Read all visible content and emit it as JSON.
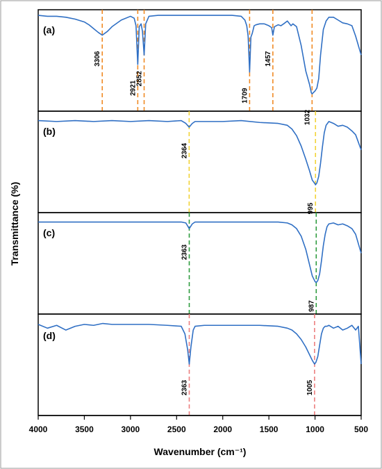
{
  "chart_data": {
    "type": "line",
    "xlabel": "Wavenumber (cm⁻¹)",
    "ylabel": "Transmittance (%)",
    "xlim": [
      4000,
      500
    ],
    "x_ticks": [
      4000,
      3500,
      3000,
      2500,
      2000,
      1500,
      1000,
      500
    ],
    "x_tick_labels": [
      "4000",
      "3500",
      "3000",
      "2500",
      "2000",
      "1500",
      "1000",
      "500"
    ],
    "y_ticks_shown": false,
    "grid": false,
    "line_color": "#2f6fc4",
    "panels": [
      {
        "label": "(a)",
        "marker_color": "#f08a24",
        "peaks": [
          3306,
          2921,
          2852,
          1709,
          1457,
          1032
        ],
        "peak_labels": [
          "3306",
          "2921",
          "2852",
          "1709",
          "1457",
          "1032"
        ],
        "spectrum": {
          "x": [
            4000,
            3900,
            3800,
            3700,
            3600,
            3500,
            3450,
            3400,
            3350,
            3306,
            3250,
            3200,
            3100,
            3000,
            2960,
            2940,
            2921,
            2905,
            2885,
            2870,
            2852,
            2835,
            2800,
            2700,
            2500,
            2300,
            2100,
            1900,
            1800,
            1760,
            1740,
            1725,
            1709,
            1695,
            1680,
            1660,
            1640,
            1600,
            1550,
            1500,
            1470,
            1457,
            1440,
            1400,
            1370,
            1340,
            1300,
            1260,
            1240,
            1200,
            1150,
            1100,
            1060,
            1040,
            1032,
            1020,
            1000,
            980,
            960,
            940,
            910,
            880,
            850,
            800,
            750,
            700,
            650,
            600,
            560,
            530,
            500
          ],
          "y": [
            97,
            96,
            96,
            95,
            93,
            90,
            87,
            83,
            79,
            76,
            80,
            85,
            92,
            96,
            94,
            86,
            45,
            85,
            88,
            80,
            55,
            88,
            96,
            97,
            97,
            97,
            97,
            97,
            96,
            92,
            86,
            75,
            37,
            74,
            78,
            86,
            87,
            88,
            88,
            86,
            84,
            76,
            85,
            87,
            86,
            88,
            91,
            86,
            88,
            85,
            65,
            38,
            24,
            15,
            14,
            15,
            17,
            20,
            30,
            55,
            82,
            91,
            95,
            95,
            92,
            89,
            88,
            86,
            75,
            65,
            55
          ]
        }
      },
      {
        "label": "(b)",
        "marker_color": "#f2d336",
        "peaks": [
          2364,
          995
        ],
        "peak_labels": [
          "2364",
          "995"
        ],
        "spectrum": {
          "x": [
            4000,
            3800,
            3600,
            3400,
            3200,
            3000,
            2800,
            2600,
            2450,
            2400,
            2364,
            2330,
            2300,
            2200,
            2000,
            1800,
            1600,
            1400,
            1300,
            1250,
            1200,
            1150,
            1100,
            1060,
            1030,
            1000,
            995,
            980,
            960,
            940,
            920,
            900,
            880,
            850,
            800,
            750,
            700,
            650,
            600,
            560,
            530,
            500
          ],
          "y": [
            93,
            92,
            93,
            92,
            93,
            92,
            93,
            92,
            93,
            90,
            86,
            90,
            92,
            92,
            92,
            93,
            91,
            90,
            88,
            84,
            77,
            66,
            52,
            40,
            30,
            26,
            25,
            27,
            34,
            48,
            65,
            80,
            88,
            92,
            90,
            87,
            88,
            86,
            82,
            78,
            70,
            62
          ]
        }
      },
      {
        "label": "(c)",
        "marker_color": "#2e9b3e",
        "peaks": [
          2363,
          987
        ],
        "peak_labels": [
          "2363",
          "987"
        ],
        "spectrum": {
          "x": [
            4000,
            3800,
            3600,
            3400,
            3200,
            3000,
            2800,
            2600,
            2450,
            2400,
            2363,
            2330,
            2300,
            2200,
            2000,
            1800,
            1600,
            1400,
            1300,
            1250,
            1200,
            1150,
            1100,
            1060,
            1030,
            1000,
            987,
            970,
            950,
            930,
            910,
            890,
            870,
            850,
            800,
            750,
            700,
            650,
            600,
            560,
            530,
            500
          ],
          "y": [
            93,
            93,
            93,
            93,
            93,
            93,
            93,
            93,
            93,
            92,
            86,
            91,
            93,
            93,
            93,
            93,
            93,
            93,
            92,
            90,
            86,
            78,
            64,
            48,
            36,
            30,
            29,
            31,
            38,
            52,
            68,
            80,
            88,
            91,
            92,
            90,
            91,
            89,
            86,
            80,
            70,
            60
          ]
        }
      },
      {
        "label": "(d)",
        "marker_color": "#ec7e7e",
        "peaks": [
          2363,
          1005
        ],
        "peak_labels": [
          "2363",
          "1005"
        ],
        "spectrum": {
          "x": [
            4000,
            3900,
            3800,
            3700,
            3600,
            3500,
            3400,
            3300,
            3200,
            3000,
            2800,
            2600,
            2450,
            2410,
            2380,
            2363,
            2345,
            2320,
            2300,
            2200,
            2000,
            1800,
            1600,
            1400,
            1300,
            1250,
            1200,
            1150,
            1100,
            1060,
            1030,
            1005,
            990,
            970,
            950,
            930,
            910,
            890,
            870,
            850,
            800,
            750,
            700,
            650,
            600,
            560,
            530,
            500
          ],
          "y": [
            92,
            88,
            91,
            86,
            90,
            92,
            91,
            93,
            92,
            92,
            92,
            91,
            90,
            82,
            65,
            50,
            68,
            86,
            90,
            91,
            91,
            91,
            91,
            90,
            88,
            86,
            82,
            76,
            68,
            60,
            54,
            50,
            52,
            58,
            70,
            82,
            88,
            90,
            90,
            91,
            88,
            90,
            86,
            88,
            91,
            86,
            90,
            50
          ]
        }
      }
    ]
  }
}
